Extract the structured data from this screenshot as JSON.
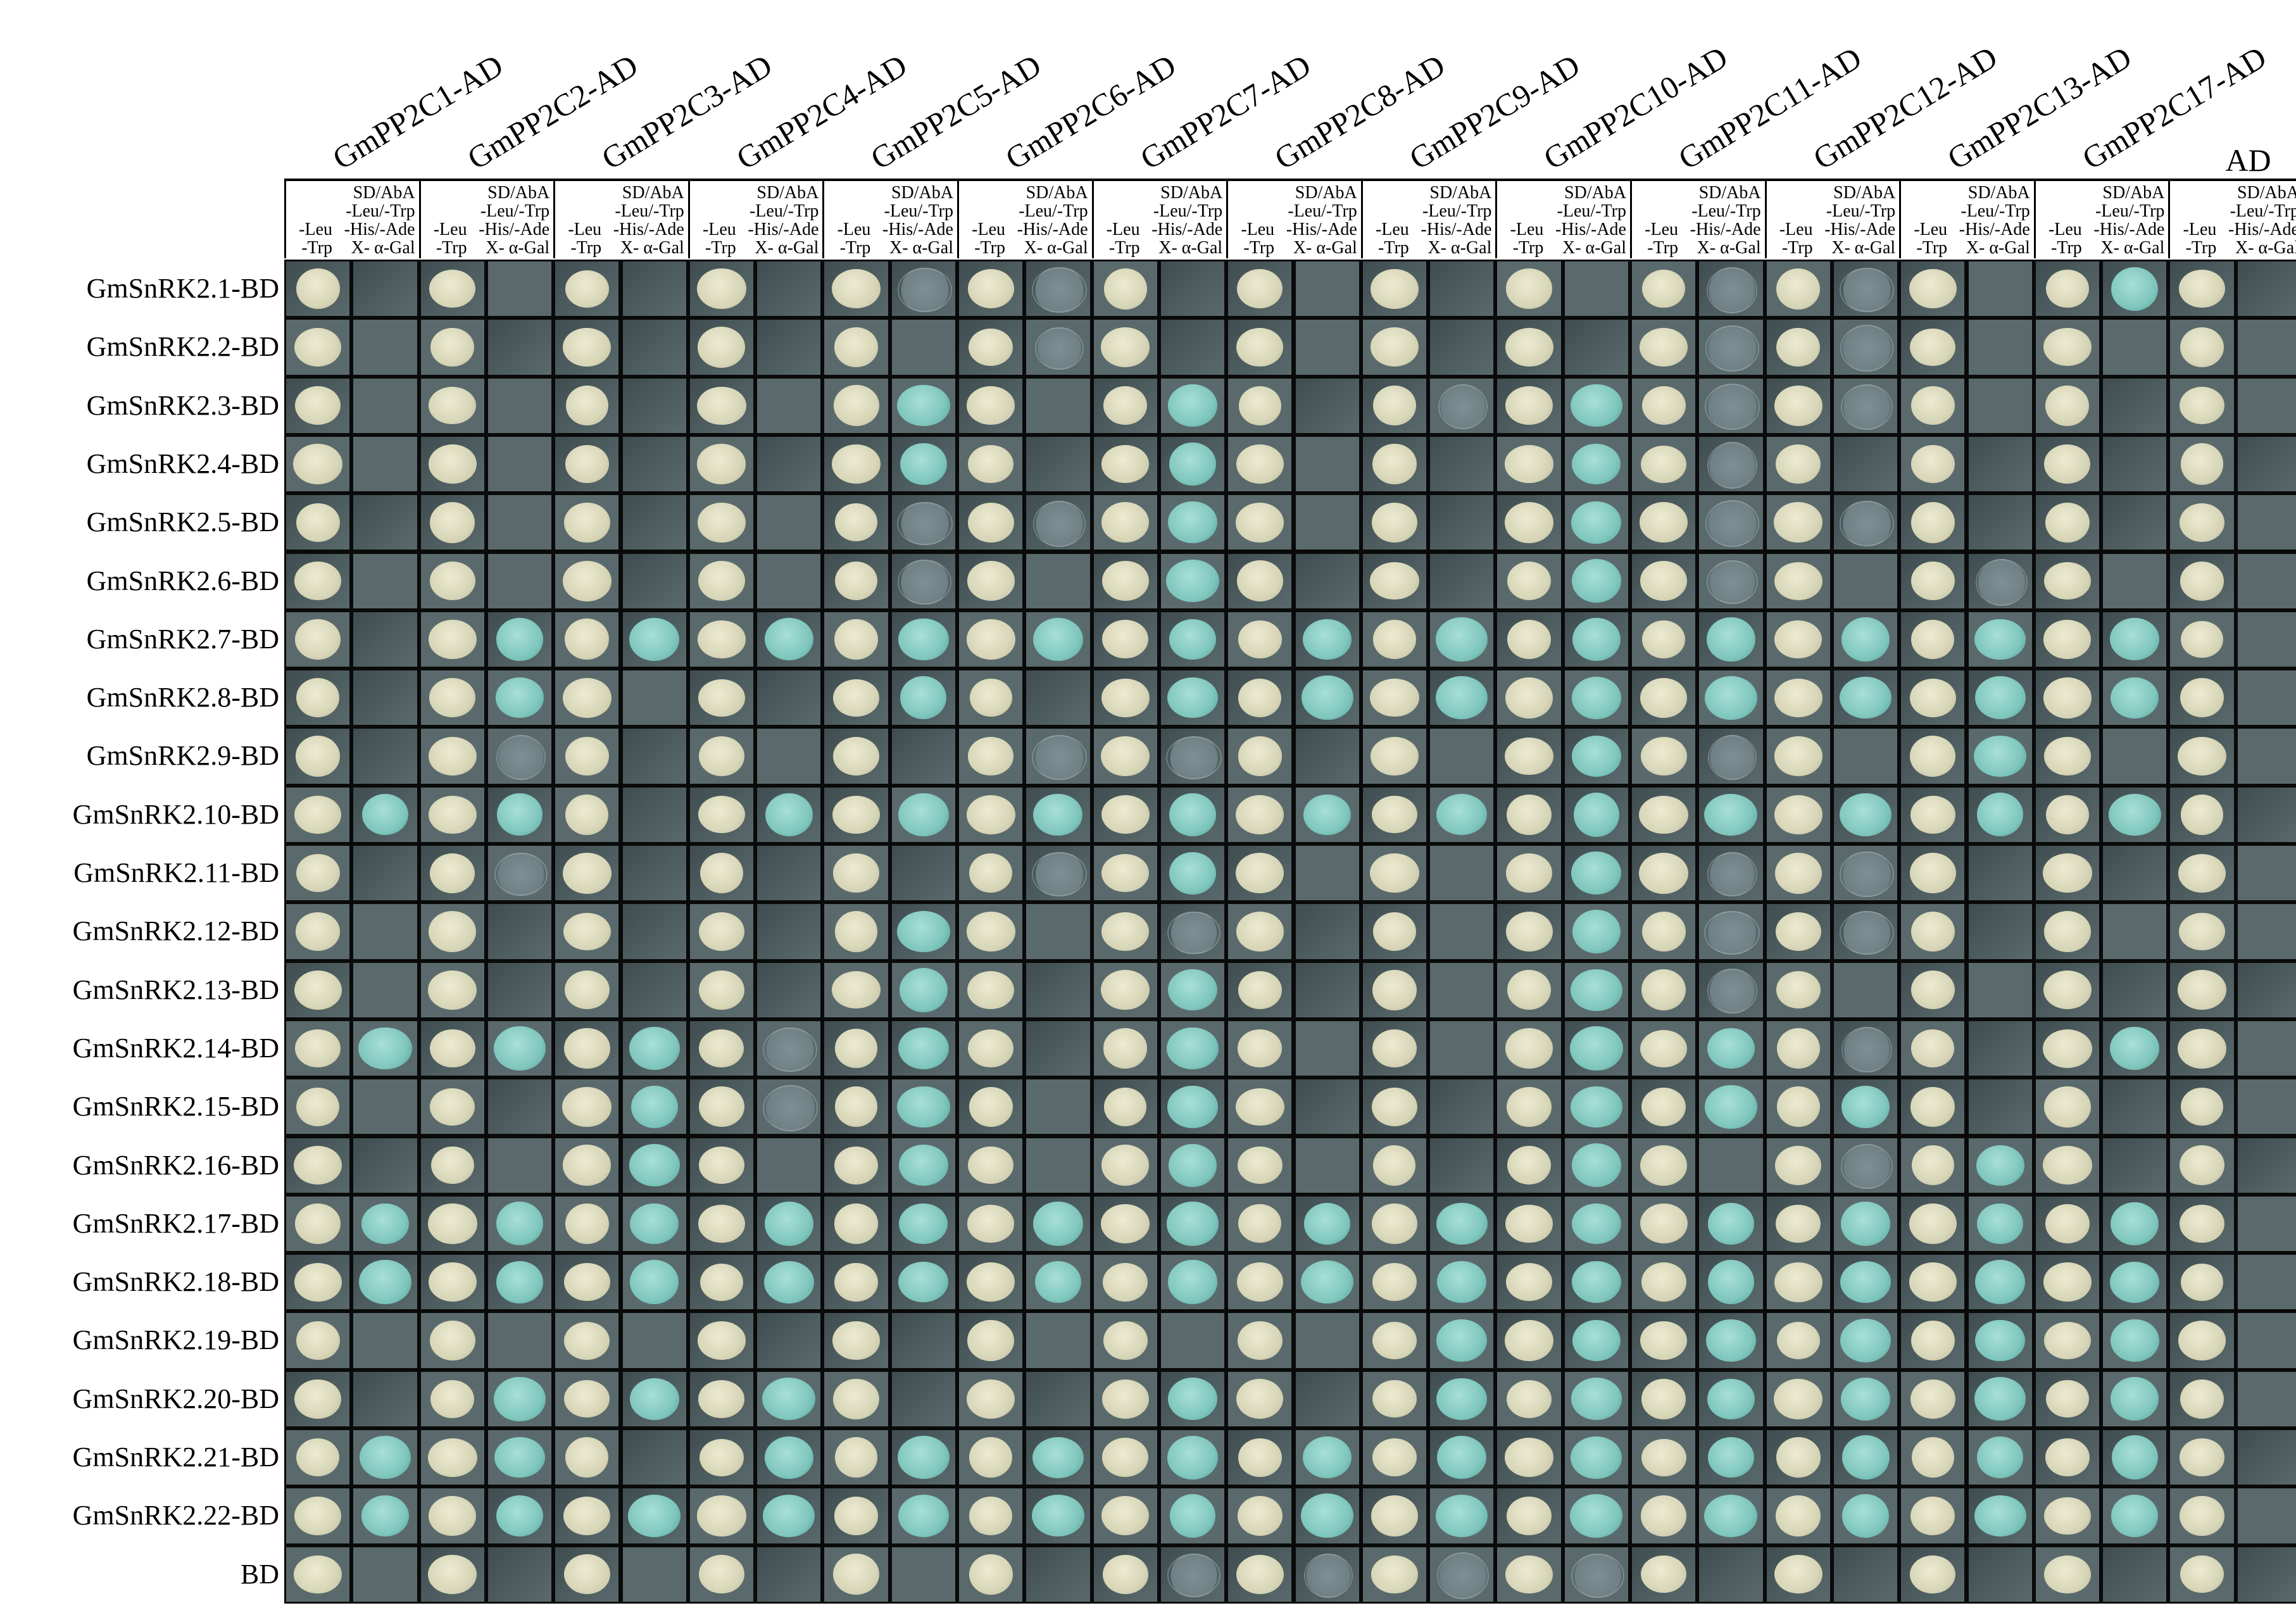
{
  "column_headers": [
    "GmPP2C1-AD",
    "GmPP2C2-AD",
    "GmPP2C3-AD",
    "GmPP2C4-AD",
    "GmPP2C5-AD",
    "GmPP2C6-AD",
    "GmPP2C7-AD",
    "GmPP2C8-AD",
    "GmPP2C9-AD",
    "GmPP2C10-AD",
    "GmPP2C11-AD",
    "GmPP2C12-AD",
    "GmPP2C13-AD",
    "GmPP2C17-AD",
    "AD"
  ],
  "medium_left_lines": [
    "-Leu",
    "-Trp"
  ],
  "medium_right_lines": [
    "SD/AbA",
    "-Leu/-Trp",
    "-His/-Ade",
    "X- α-Gal"
  ],
  "row_labels": [
    "GmSnRK2.1-BD",
    "GmSnRK2.2-BD",
    "GmSnRK2.3-BD",
    "GmSnRK2.4-BD",
    "GmSnRK2.5-BD",
    "GmSnRK2.6-BD",
    "GmSnRK2.7-BD",
    "GmSnRK2.8-BD",
    "GmSnRK2.9-BD",
    "GmSnRK2.10-BD",
    "GmSnRK2.11-BD",
    "GmSnRK2.12-BD",
    "GmSnRK2.13-BD",
    "GmSnRK2.14-BD",
    "GmSnRK2.15-BD",
    "GmSnRK2.16-BD",
    "GmSnRK2.17-BD",
    "GmSnRK2.18-BD",
    "GmSnRK2.19-BD",
    "GmSnRK2.20-BD",
    "GmSnRK2.21-BD",
    "GmSnRK2.22-BD",
    "BD"
  ],
  "colors": {
    "plate": "#5a6a6c",
    "plate_dark": "#3f4d50",
    "colony_white": "#d8d6b8",
    "colony_blue": "#7fc6bd",
    "colony_faint": "#6f8084"
  },
  "growth_key": {
    "0": "no growth",
    "1": "faint growth",
    "2": "blue colony"
  },
  "selective_growth": [
    [
      0,
      0,
      0,
      0,
      1,
      1,
      0,
      0,
      0,
      0,
      1,
      1,
      0,
      2,
      0
    ],
    [
      0,
      0,
      0,
      0,
      0,
      1,
      0,
      0,
      0,
      0,
      1,
      1,
      0,
      0,
      0
    ],
    [
      0,
      0,
      0,
      0,
      2,
      0,
      2,
      0,
      1,
      2,
      1,
      1,
      0,
      0,
      0
    ],
    [
      0,
      0,
      0,
      0,
      2,
      0,
      2,
      0,
      0,
      2,
      1,
      0,
      0,
      0,
      0
    ],
    [
      0,
      0,
      0,
      0,
      1,
      1,
      2,
      0,
      0,
      2,
      1,
      1,
      0,
      0,
      0
    ],
    [
      0,
      0,
      0,
      0,
      1,
      0,
      2,
      0,
      0,
      2,
      1,
      0,
      1,
      0,
      0
    ],
    [
      0,
      2,
      2,
      2,
      2,
      2,
      2,
      2,
      2,
      2,
      2,
      2,
      2,
      2,
      0
    ],
    [
      0,
      2,
      0,
      0,
      2,
      0,
      2,
      2,
      2,
      2,
      2,
      2,
      2,
      2,
      0
    ],
    [
      0,
      1,
      0,
      0,
      0,
      1,
      1,
      0,
      0,
      2,
      1,
      0,
      2,
      0,
      0
    ],
    [
      2,
      2,
      0,
      2,
      2,
      2,
      2,
      2,
      2,
      2,
      2,
      2,
      2,
      2,
      0
    ],
    [
      0,
      1,
      0,
      0,
      0,
      1,
      2,
      0,
      0,
      2,
      1,
      1,
      0,
      0,
      0
    ],
    [
      0,
      0,
      0,
      0,
      2,
      0,
      1,
      0,
      0,
      2,
      1,
      1,
      0,
      0,
      0
    ],
    [
      0,
      0,
      0,
      0,
      2,
      0,
      2,
      0,
      0,
      2,
      1,
      0,
      0,
      0,
      0
    ],
    [
      2,
      2,
      2,
      1,
      2,
      0,
      2,
      0,
      0,
      2,
      2,
      1,
      0,
      2,
      0
    ],
    [
      0,
      0,
      2,
      1,
      2,
      0,
      2,
      0,
      0,
      2,
      2,
      2,
      0,
      0,
      0
    ],
    [
      0,
      0,
      2,
      0,
      2,
      0,
      2,
      0,
      0,
      2,
      0,
      1,
      2,
      0,
      0
    ],
    [
      2,
      2,
      2,
      2,
      2,
      2,
      2,
      2,
      2,
      2,
      2,
      2,
      2,
      2,
      0
    ],
    [
      2,
      2,
      2,
      2,
      2,
      2,
      2,
      2,
      2,
      2,
      2,
      2,
      2,
      2,
      0
    ],
    [
      0,
      0,
      0,
      0,
      0,
      0,
      0,
      0,
      2,
      2,
      2,
      2,
      2,
      2,
      0
    ],
    [
      0,
      2,
      2,
      2,
      0,
      0,
      2,
      0,
      2,
      2,
      2,
      2,
      2,
      2,
      0
    ],
    [
      2,
      2,
      0,
      2,
      2,
      2,
      2,
      2,
      2,
      2,
      2,
      2,
      2,
      2,
      0
    ],
    [
      2,
      2,
      2,
      2,
      2,
      2,
      2,
      2,
      2,
      2,
      2,
      2,
      2,
      2,
      0
    ],
    [
      0,
      0,
      0,
      0,
      0,
      0,
      1,
      1,
      1,
      1,
      0,
      0,
      0,
      0,
      0
    ]
  ]
}
